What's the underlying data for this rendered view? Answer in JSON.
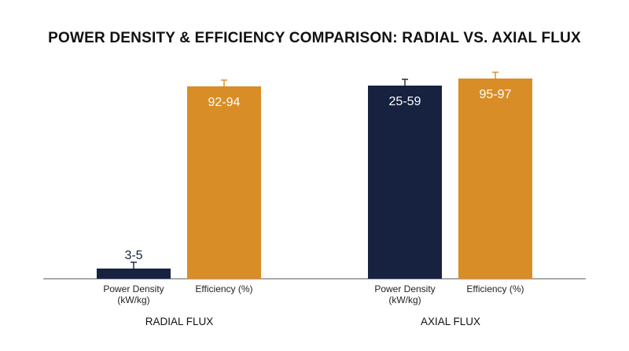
{
  "chart_data": {
    "type": "bar",
    "title": "POWER DENSITY & EFFICIENCY COMPARISON: RADIAL VS. AXIAL FLUX",
    "groups": [
      {
        "name": "RADIAL FLUX",
        "bars": [
          {
            "category": "Power Density (kW/kg)",
            "label": "3-5",
            "low": 3,
            "high": 5,
            "color": "#16223f"
          },
          {
            "category": "Efficiency (%)",
            "label": "92-94",
            "low": 92,
            "high": 94,
            "color": "#d98d26"
          }
        ]
      },
      {
        "name": "AXIAL FLUX",
        "bars": [
          {
            "category": "Power Density (kW/kg)",
            "label": "25-59",
            "low": 25,
            "high": 59,
            "color": "#16223f"
          },
          {
            "category": "Efficiency (%)",
            "label": "95-97",
            "low": 95,
            "high": 97,
            "color": "#d98d26"
          }
        ]
      }
    ],
    "ylim": [
      0,
      100
    ],
    "grid": false,
    "legend": "none"
  }
}
